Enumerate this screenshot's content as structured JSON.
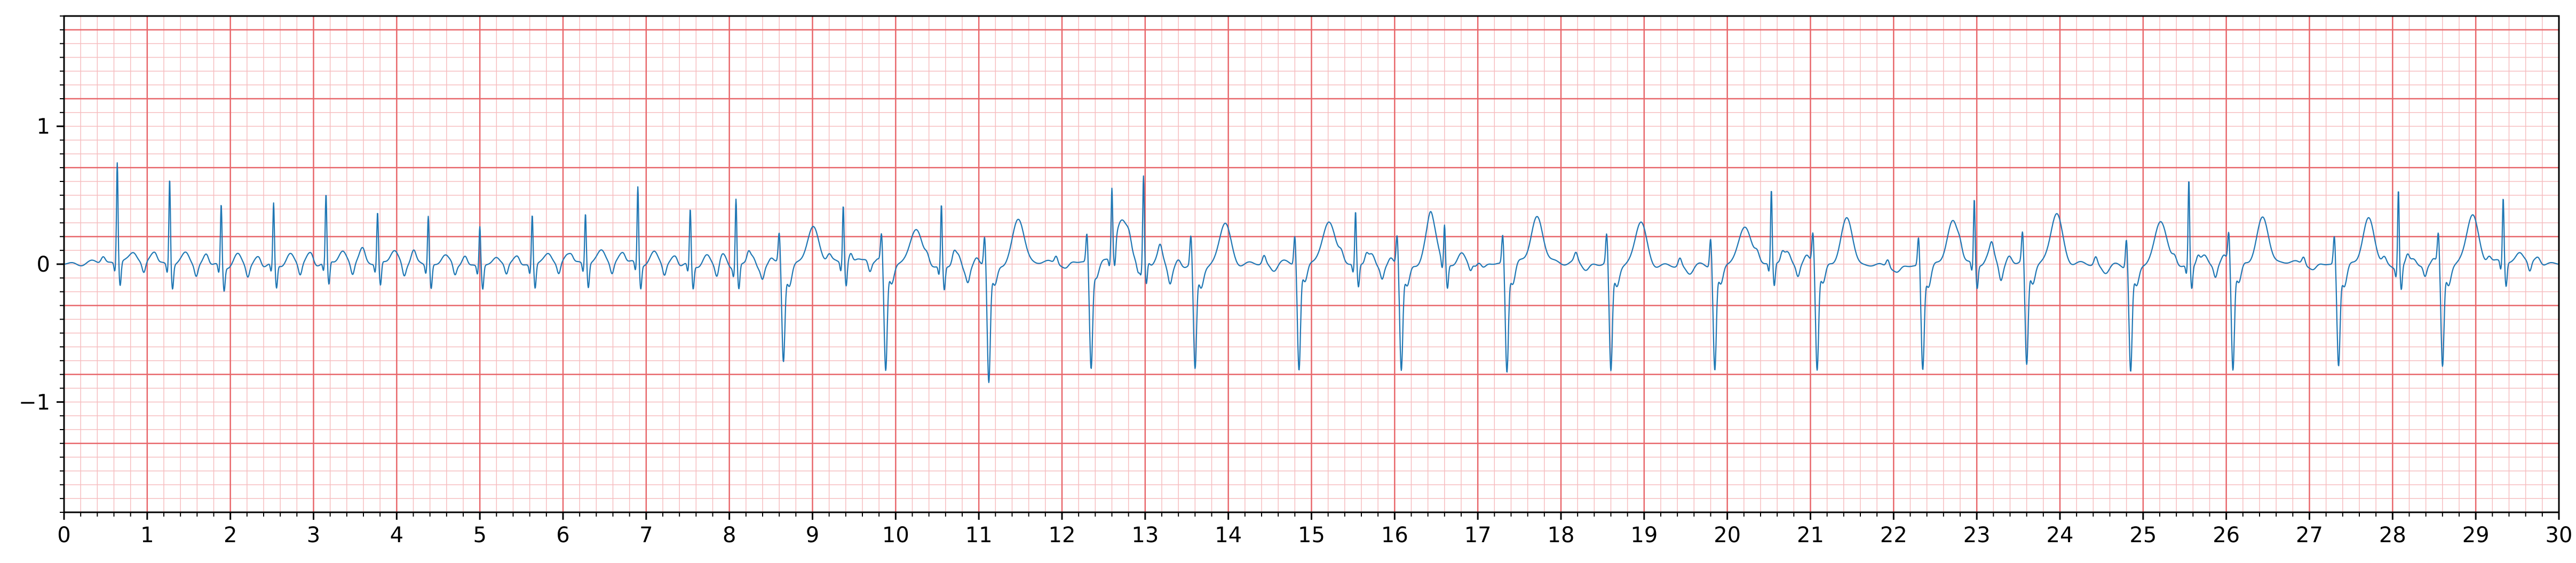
{
  "chart_data": {
    "type": "line",
    "title": "",
    "xlabel": "",
    "ylabel": "",
    "xlim": [
      0,
      30
    ],
    "ylim": [
      -1.8,
      1.8
    ],
    "grid": {
      "major_x_step": 1,
      "minor_x_step": 0.2,
      "major_y_step": 0.5,
      "minor_y_step": 0.1,
      "major_color": "#e8676b",
      "minor_color": "#f6bdbf"
    },
    "x_tick_labels": [
      "0",
      "1",
      "2",
      "3",
      "4",
      "5",
      "6",
      "7",
      "8",
      "9",
      "10",
      "11",
      "12",
      "13",
      "14",
      "15",
      "16",
      "17",
      "18",
      "19",
      "20",
      "21",
      "22",
      "23",
      "24",
      "25",
      "26",
      "27",
      "28",
      "29",
      "30"
    ],
    "y_ticks": [
      {
        "value": 1,
        "label": "1"
      },
      {
        "value": 0,
        "label": "0"
      },
      {
        "value": -1,
        "label": "−1"
      }
    ],
    "series": [
      {
        "color": "#1f77b4",
        "beats_early": [
          {
            "t": 0.64,
            "r": 0.73
          },
          {
            "t": 1.27,
            "r": 0.63
          },
          {
            "t": 1.89,
            "r": 0.45
          },
          {
            "t": 2.52,
            "r": 0.44
          },
          {
            "t": 3.15,
            "r": 0.49
          },
          {
            "t": 3.77,
            "r": 0.37
          },
          {
            "t": 4.38,
            "r": 0.36
          },
          {
            "t": 5.0,
            "r": 0.29
          },
          {
            "t": 5.63,
            "r": 0.37
          },
          {
            "t": 6.27,
            "r": 0.37
          },
          {
            "t": 6.9,
            "r": 0.56
          },
          {
            "t": 7.53,
            "r": 0.4
          },
          {
            "t": 8.08,
            "r": 0.5
          },
          {
            "t": 9.37,
            "r": 0.42
          },
          {
            "t": 10.55,
            "r": 0.45
          },
          {
            "t": 12.6,
            "r": 0.47
          },
          {
            "t": 12.98,
            "r": 0.63
          },
          {
            "t": 15.53,
            "r": 0.38
          },
          {
            "t": 16.6,
            "r": 0.28
          },
          {
            "t": 20.53,
            "r": 0.53
          },
          {
            "t": 22.97,
            "r": 0.47
          },
          {
            "t": 25.55,
            "r": 0.62
          },
          {
            "t": 28.07,
            "r": 0.57
          },
          {
            "t": 29.33,
            "r": 0.47
          }
        ],
        "beats_wide": [
          {
            "t": 8.65,
            "s": -0.7,
            "tw": 0.25
          },
          {
            "t": 9.88,
            "s": -0.77,
            "tw": 0.27
          },
          {
            "t": 11.12,
            "s": -0.84,
            "tw": 0.32
          },
          {
            "t": 12.35,
            "s": -0.75,
            "tw": 0.3
          },
          {
            "t": 13.6,
            "s": -0.75,
            "tw": 0.3
          },
          {
            "t": 14.85,
            "s": -0.77,
            "tw": 0.31
          },
          {
            "t": 16.08,
            "s": -0.75,
            "tw": 0.33
          },
          {
            "t": 17.35,
            "s": -0.77,
            "tw": 0.33
          },
          {
            "t": 18.6,
            "s": -0.78,
            "tw": 0.31
          },
          {
            "t": 19.85,
            "s": -0.75,
            "tw": 0.28
          },
          {
            "t": 21.08,
            "s": -0.77,
            "tw": 0.32
          },
          {
            "t": 22.35,
            "s": -0.73,
            "tw": 0.32
          },
          {
            "t": 23.6,
            "s": -0.75,
            "tw": 0.35
          },
          {
            "t": 24.85,
            "s": -0.75,
            "tw": 0.34
          },
          {
            "t": 26.08,
            "s": -0.77,
            "tw": 0.31
          },
          {
            "t": 27.35,
            "s": -0.71,
            "tw": 0.35
          },
          {
            "t": 28.6,
            "s": -0.75,
            "tw": 0.34
          }
        ]
      }
    ]
  }
}
